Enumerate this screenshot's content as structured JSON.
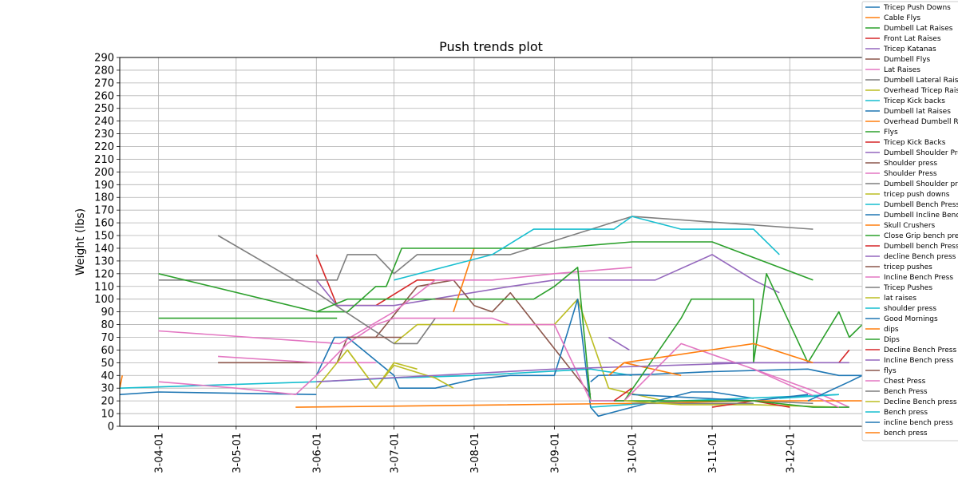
{
  "chart_data": {
    "type": "line",
    "title": "Push trends plot",
    "xlabel": "",
    "ylabel": "Weight (lbs)",
    "ylim": [
      0,
      290
    ],
    "yticks": [
      0,
      10,
      20,
      30,
      40,
      50,
      60,
      70,
      80,
      90,
      100,
      110,
      120,
      130,
      140,
      150,
      160,
      170,
      180,
      190,
      200,
      210,
      220,
      230,
      240,
      250,
      260,
      270,
      280,
      290
    ],
    "xlim": [
      "2023-03-17",
      "2023-12-29"
    ],
    "xticks": [
      {
        "date": "2023-04-01",
        "label": "3-04-01"
      },
      {
        "date": "2023-05-01",
        "label": "3-05-01"
      },
      {
        "date": "2023-06-01",
        "label": "3-06-01"
      },
      {
        "date": "2023-07-01",
        "label": "3-07-01"
      },
      {
        "date": "2023-08-01",
        "label": "3-08-01"
      },
      {
        "date": "2023-09-01",
        "label": "3-09-01"
      },
      {
        "date": "2023-10-01",
        "label": "3-10-01"
      },
      {
        "date": "2023-11-01",
        "label": "3-11-01"
      },
      {
        "date": "2023-12-01",
        "label": "3-12-01"
      }
    ],
    "grid": true,
    "legend_position": "right",
    "colors": [
      "#1f77b4",
      "#ff7f0e",
      "#2ca02c",
      "#d62728",
      "#9467bd",
      "#8c564b",
      "#e377c2",
      "#7f7f7f",
      "#bcbd22",
      "#17becf"
    ],
    "series": [
      {
        "name": "Tricep Push Downs",
        "points": [
          [
            "2023-03-17",
            25
          ],
          [
            "2023-04-01",
            27
          ],
          [
            "2023-06-01",
            25
          ]
        ]
      },
      {
        "name": "Cable Flys",
        "points": [
          [
            "2023-03-17",
            30
          ],
          [
            "2023-03-18",
            40
          ]
        ]
      },
      {
        "name": "Dumbell Lat Raises",
        "points": [
          [
            "2023-04-01",
            85
          ],
          [
            "2023-06-09",
            85
          ]
        ]
      },
      {
        "name": "Front Lat Raises",
        "points": [
          [
            "2023-06-01",
            135
          ],
          [
            "2023-06-09",
            95
          ],
          [
            "2023-06-24",
            95
          ],
          [
            "2023-07-10",
            115
          ],
          [
            "2023-07-24",
            115
          ]
        ]
      },
      {
        "name": "Tricep Katanas",
        "points": [
          [
            "2023-06-01",
            115
          ],
          [
            "2023-06-09",
            95
          ],
          [
            "2023-07-01",
            95
          ],
          [
            "2023-08-15",
            110
          ],
          [
            "2023-09-01",
            115
          ],
          [
            "2023-10-10",
            115
          ],
          [
            "2023-11-01",
            135
          ],
          [
            "2023-11-17",
            115
          ],
          [
            "2023-11-27",
            105
          ]
        ]
      },
      {
        "name": "Dumbell Flys",
        "points": [
          [
            "2023-06-01",
            50
          ],
          [
            "2023-06-09",
            50
          ],
          [
            "2023-06-13",
            70
          ],
          [
            "2023-06-24",
            70
          ],
          [
            "2023-07-10",
            110
          ],
          [
            "2023-07-24",
            115
          ],
          [
            "2023-08-01",
            95
          ],
          [
            "2023-08-08",
            90
          ],
          [
            "2023-08-15",
            105
          ],
          [
            "2023-09-15",
            25
          ]
        ]
      },
      {
        "name": "Lat Raises",
        "points": [
          [
            "2023-04-01",
            75
          ],
          [
            "2023-06-10",
            65
          ],
          [
            "2023-07-01",
            90
          ],
          [
            "2023-07-17",
            115
          ],
          [
            "2023-08-08",
            115
          ],
          [
            "2023-09-01",
            120
          ],
          [
            "2023-10-01",
            125
          ]
        ]
      },
      {
        "name": "Dumbell Lateral Raises",
        "points": [
          [
            "2023-04-01",
            115
          ],
          [
            "2023-06-09",
            115
          ],
          [
            "2023-06-13",
            135
          ],
          [
            "2023-06-24",
            135
          ],
          [
            "2023-07-01",
            120
          ],
          [
            "2023-07-10",
            135
          ],
          [
            "2023-08-15",
            135
          ],
          [
            "2023-10-01",
            165
          ],
          [
            "2023-12-10",
            155
          ]
        ]
      },
      {
        "name": "Overhead Tricep Raises",
        "points": [
          [
            "2023-07-01",
            65
          ],
          [
            "2023-07-10",
            80
          ],
          [
            "2023-08-01",
            80
          ],
          [
            "2023-09-01",
            80
          ],
          [
            "2023-09-10",
            100
          ],
          [
            "2023-09-22",
            30
          ],
          [
            "2023-09-28",
            27
          ],
          [
            "2023-10-20",
            17
          ],
          [
            "2023-11-17",
            17
          ],
          [
            "2023-12-20",
            15
          ]
        ]
      },
      {
        "name": "Tricep Kick backs",
        "points": [
          [
            "2023-03-17",
            30
          ],
          [
            "2023-06-01",
            35
          ],
          [
            "2023-07-01",
            38
          ],
          [
            "2023-08-01",
            40
          ],
          [
            "2023-09-15",
            45
          ],
          [
            "2023-10-01",
            40
          ]
        ]
      },
      {
        "name": "Dumbell lat Raises",
        "points": [
          [
            "2023-06-01",
            40
          ],
          [
            "2023-06-08",
            70
          ],
          [
            "2023-06-13",
            70
          ],
          [
            "2023-07-01",
            40
          ],
          [
            "2023-07-03",
            30
          ],
          [
            "2023-07-17",
            30
          ],
          [
            "2023-08-01",
            37
          ],
          [
            "2023-08-15",
            40
          ],
          [
            "2023-09-01",
            40
          ],
          [
            "2023-09-10",
            100
          ],
          [
            "2023-09-15",
            15
          ],
          [
            "2023-09-18",
            8
          ],
          [
            "2023-10-01",
            15
          ],
          [
            "2023-10-24",
            27
          ],
          [
            "2023-11-01",
            27
          ],
          [
            "2023-11-17",
            22
          ]
        ]
      },
      {
        "name": "Overhead Dumbell Raises",
        "points": [
          [
            "2023-07-24",
            90
          ],
          [
            "2023-08-01",
            140
          ]
        ]
      },
      {
        "name": "Flys",
        "points": [
          [
            "2023-04-01",
            120
          ],
          [
            "2023-06-01",
            90
          ],
          [
            "2023-06-13",
            90
          ],
          [
            "2023-06-24",
            110
          ],
          [
            "2023-06-28",
            110
          ],
          [
            "2023-07-04",
            140
          ],
          [
            "2023-09-01",
            140
          ],
          [
            "2023-10-01",
            145
          ],
          [
            "2023-11-01",
            145
          ],
          [
            "2023-12-10",
            115
          ]
        ]
      },
      {
        "name": "Tricep Kick Backs",
        "points": [
          [
            "2023-11-01",
            15
          ],
          [
            "2023-11-17",
            20
          ],
          [
            "2023-12-01",
            15
          ]
        ]
      },
      {
        "name": "Dumbell Shoulder Press",
        "points": [
          [
            "2023-09-22",
            70
          ],
          [
            "2023-09-30",
            60
          ]
        ]
      },
      {
        "name": "Shoulder press",
        "points": [
          [
            "2023-04-24",
            50
          ],
          [
            "2023-06-01",
            50
          ]
        ]
      },
      {
        "name": "Shoulder Press",
        "points": [
          [
            "2023-04-24",
            55
          ],
          [
            "2023-06-01",
            50
          ],
          [
            "2023-06-24",
            50
          ]
        ]
      },
      {
        "name": "Dumbell Shoulder press",
        "points": [
          [
            "2023-04-24",
            150
          ],
          [
            "2023-06-01",
            105
          ],
          [
            "2023-07-01",
            65
          ],
          [
            "2023-07-04",
            65
          ],
          [
            "2023-07-10",
            65
          ],
          [
            "2023-07-17",
            85
          ]
        ]
      },
      {
        "name": "tricep push downs",
        "points": [
          [
            "2023-06-01",
            30
          ],
          [
            "2023-06-13",
            60
          ],
          [
            "2023-06-24",
            30
          ],
          [
            "2023-07-01",
            48
          ],
          [
            "2023-07-17",
            38
          ],
          [
            "2023-07-24",
            30
          ]
        ]
      },
      {
        "name": "Dumbell Bench Press",
        "points": [
          [
            "2023-07-01",
            115
          ],
          [
            "2023-08-08",
            135
          ],
          [
            "2023-08-24",
            155
          ],
          [
            "2023-09-24",
            155
          ],
          [
            "2023-10-01",
            165
          ],
          [
            "2023-10-20",
            155
          ],
          [
            "2023-11-17",
            155
          ],
          [
            "2023-11-27",
            135
          ]
        ]
      },
      {
        "name": "Dumbell Incline Bench Press",
        "points": [
          [
            "2023-09-15",
            35
          ],
          [
            "2023-09-18",
            40
          ],
          [
            "2023-10-10",
            41
          ],
          [
            "2023-11-01",
            43
          ],
          [
            "2023-12-08",
            45
          ],
          [
            "2023-12-20",
            40
          ],
          [
            "2023-12-29",
            40
          ]
        ]
      },
      {
        "name": "Skull Crushers",
        "points": [
          [
            "2023-09-22",
            40
          ],
          [
            "2023-09-28",
            50
          ],
          [
            "2023-10-20",
            40
          ]
        ]
      },
      {
        "name": "Close Grip bench press",
        "points": [
          [
            "2023-06-01",
            90
          ],
          [
            "2023-06-13",
            100
          ],
          [
            "2023-08-01",
            100
          ],
          [
            "2023-08-24",
            100
          ],
          [
            "2023-09-01",
            110
          ],
          [
            "2023-09-10",
            125
          ],
          [
            "2023-09-15",
            20
          ],
          [
            "2023-09-28",
            20
          ],
          [
            "2023-10-20",
            85
          ],
          [
            "2023-10-24",
            100
          ],
          [
            "2023-11-17",
            100
          ],
          [
            "2023-11-17",
            50
          ],
          [
            "2023-11-22",
            120
          ],
          [
            "2023-12-08",
            50
          ],
          [
            "2023-12-20",
            90
          ],
          [
            "2023-12-24",
            70
          ],
          [
            "2023-12-29",
            80
          ]
        ]
      },
      {
        "name": "Dumbell bench Press",
        "points": [
          [
            "2023-12-20",
            50
          ],
          [
            "2023-12-24",
            60
          ]
        ]
      },
      {
        "name": "decline Bench press",
        "points": [
          [
            "2023-11-01",
            50
          ],
          [
            "2023-12-08",
            50
          ]
        ]
      },
      {
        "name": "tricep pushes",
        "points": [
          [
            "2023-07-17",
            100
          ],
          [
            "2023-07-24",
            100
          ]
        ]
      },
      {
        "name": "Incline Bench Press",
        "points": [
          [
            "2023-04-01",
            35
          ],
          [
            "2023-05-01",
            30
          ],
          [
            "2023-05-24",
            25
          ],
          [
            "2023-06-01",
            40
          ],
          [
            "2023-06-13",
            65
          ],
          [
            "2023-06-24",
            80
          ],
          [
            "2023-07-01",
            85
          ],
          [
            "2023-08-01",
            85
          ],
          [
            "2023-08-08",
            85
          ],
          [
            "2023-08-15",
            80
          ],
          [
            "2023-09-01",
            80
          ],
          [
            "2023-09-15",
            20
          ],
          [
            "2023-09-28",
            20
          ],
          [
            "2023-10-20",
            65
          ],
          [
            "2023-11-17",
            45
          ],
          [
            "2023-12-10",
            28
          ],
          [
            "2023-12-24",
            15
          ]
        ]
      },
      {
        "name": "Tricep Pushes",
        "points": [
          [
            "2023-11-17",
            20
          ],
          [
            "2023-12-10",
            18
          ]
        ]
      },
      {
        "name": "lat raises",
        "points": [
          [
            "2023-06-13",
            60
          ],
          [
            "2023-06-24",
            30
          ],
          [
            "2023-07-01",
            50
          ],
          [
            "2023-07-10",
            45
          ]
        ]
      },
      {
        "name": "shoulder press",
        "points": [
          [
            "2023-09-15",
            15
          ],
          [
            "2023-10-20",
            20
          ],
          [
            "2023-12-20",
            25
          ]
        ]
      },
      {
        "name": "Good Mornings",
        "points": [
          [
            "2023-10-01",
            25
          ],
          [
            "2023-11-17",
            20
          ],
          [
            "2023-12-08",
            25
          ]
        ]
      },
      {
        "name": "dips",
        "points": [
          [
            "2023-05-24",
            15
          ],
          [
            "2023-10-01",
            18
          ],
          [
            "2023-11-17",
            20
          ],
          [
            "2023-12-29",
            20
          ]
        ]
      },
      {
        "name": "Dips",
        "points": [
          [
            "2023-09-24",
            20
          ],
          [
            "2023-10-01",
            20
          ],
          [
            "2023-11-17",
            20
          ],
          [
            "2023-12-10",
            15
          ],
          [
            "2023-12-24",
            15
          ]
        ]
      },
      {
        "name": "Decline Bench Press",
        "points": [
          [
            "2023-09-24",
            20
          ],
          [
            "2023-10-01",
            30
          ]
        ]
      },
      {
        "name": "Incline Bench press",
        "points": [
          [
            "2023-06-01",
            35
          ],
          [
            "2023-09-01",
            45
          ],
          [
            "2023-11-17",
            50
          ],
          [
            "2023-12-24",
            50
          ]
        ]
      },
      {
        "name": "flys",
        "points": [
          [
            "2023-06-13",
            70
          ],
          [
            "2023-07-04",
            70
          ]
        ]
      },
      {
        "name": "Chest Press",
        "points": [
          [
            "2023-11-17",
            45
          ],
          [
            "2023-12-20",
            15
          ]
        ]
      },
      {
        "name": "Bench Press",
        "points": [
          [
            "2023-10-01",
            18
          ],
          [
            "2023-11-17",
            18
          ]
        ]
      },
      {
        "name": "Decline Bench press",
        "points": [
          [
            "2023-09-28",
            20
          ],
          [
            "2023-10-20",
            17
          ]
        ]
      },
      {
        "name": "Bench press",
        "points": [
          [
            "2023-11-27",
            22
          ],
          [
            "2023-12-20",
            25
          ]
        ]
      },
      {
        "name": "incline bench press",
        "points": [
          [
            "2023-12-08",
            20
          ],
          [
            "2023-12-24",
            35
          ],
          [
            "2023-12-29",
            40
          ]
        ]
      },
      {
        "name": "bench press",
        "points": [
          [
            "2023-09-22",
            40
          ],
          [
            "2023-09-28",
            50
          ],
          [
            "2023-11-17",
            65
          ],
          [
            "2023-12-10",
            50
          ]
        ]
      }
    ]
  }
}
